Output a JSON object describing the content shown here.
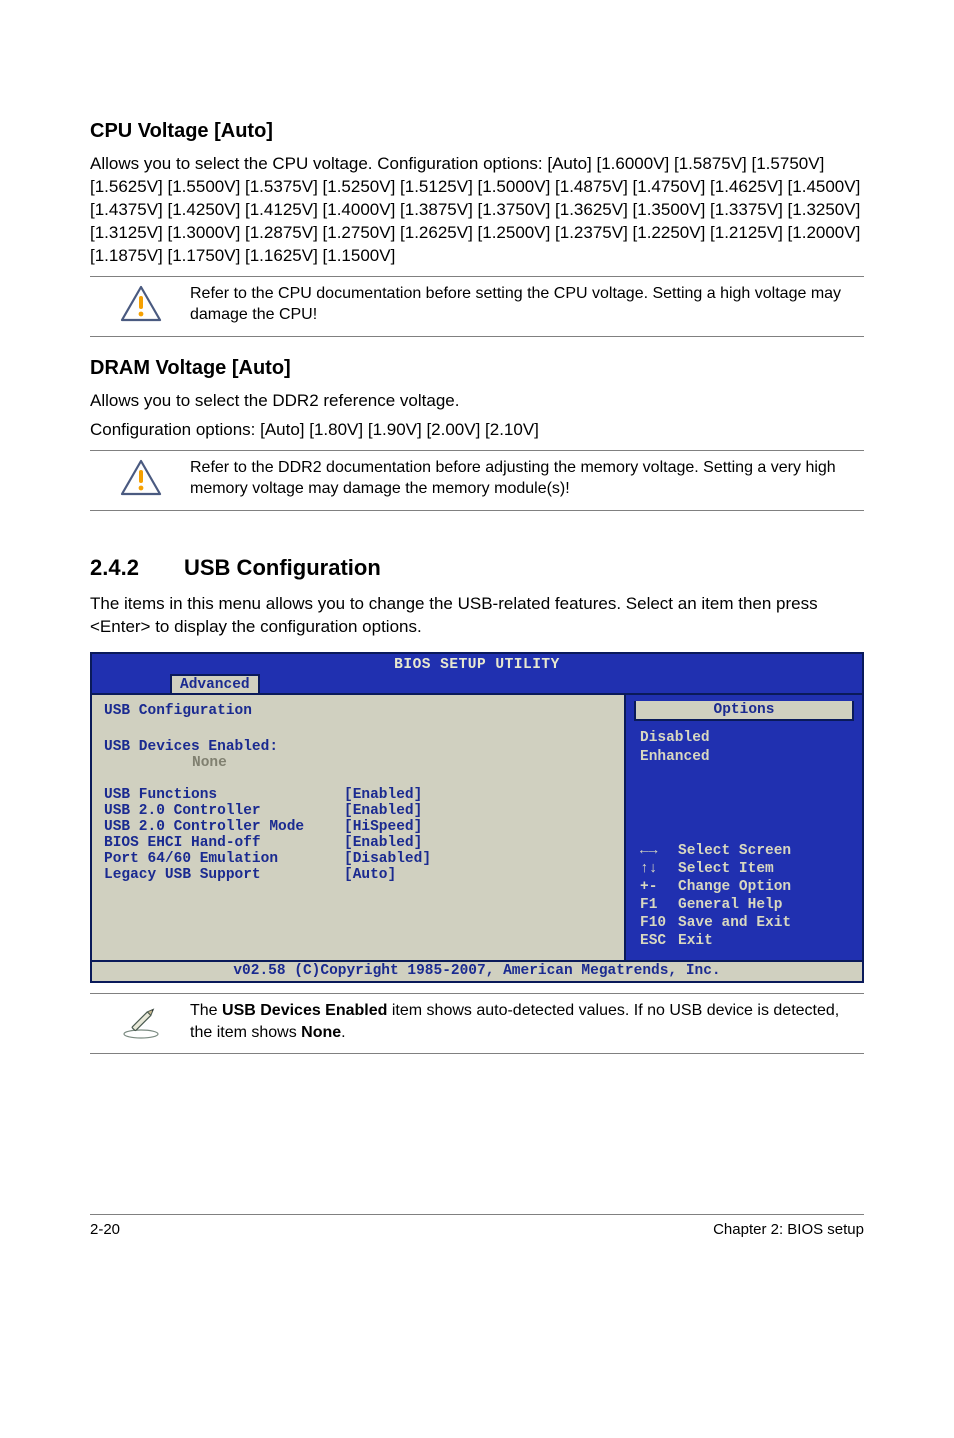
{
  "cpu": {
    "heading": "CPU Voltage [Auto]",
    "text": "Allows you to select the CPU voltage. Configuration options: [Auto] [1.6000V] [1.5875V] [1.5750V] [1.5625V] [1.5500V] [1.5375V] [1.5250V] [1.5125V] [1.5000V] [1.4875V] [1.4750V] [1.4625V] [1.4500V] [1.4375V] [1.4250V] [1.4125V] [1.4000V] [1.3875V] [1.3750V] [1.3625V] [1.3500V] [1.3375V] [1.3250V] [1.3125V] [1.3000V] [1.2875V] [1.2750V] [1.2625V] [1.2500V] [1.2375V] [1.2250V] [1.2125V] [1.2000V] [1.1875V] [1.1750V] [1.1625V] [1.1500V]",
    "note": "Refer to the CPU documentation before setting the CPU voltage. Setting a high voltage may damage the CPU!"
  },
  "dram": {
    "heading": "DRAM Voltage [Auto]",
    "line1": "Allows you to select the DDR2 reference voltage.",
    "line2": "Configuration options: [Auto] [1.80V]  [1.90V] [2.00V] [2.10V]",
    "note": "Refer to the DDR2 documentation before adjusting the memory voltage. Setting a very high memory voltage may damage the memory module(s)!"
  },
  "section": {
    "num": "2.4.2",
    "title": "USB Configuration",
    "intro": "The items in this menu allows you to change the USB-related features. Select an item then press <Enter> to display the configuration options."
  },
  "bios": {
    "banner": "BIOS SETUP UTILITY",
    "tab": "Advanced",
    "panel_title": "USB Configuration",
    "devices_label": "USB Devices Enabled:",
    "devices_value": "None",
    "rows": [
      {
        "label": "USB Functions",
        "value": "[Enabled]"
      },
      {
        "label": "USB 2.0 Controller",
        "value": "[Enabled]"
      },
      {
        "label": "USB 2.0 Controller Mode",
        "value": "[HiSpeed]"
      },
      {
        "label": "BIOS EHCI Hand-off",
        "value": "[Enabled]"
      },
      {
        "label": "Port 64/60 Emulation",
        "value": "[Disabled]"
      },
      {
        "label": "Legacy USB Support",
        "value": "[Auto]"
      }
    ],
    "options_title": "Options",
    "options": [
      "Disabled",
      "Enhanced"
    ],
    "legend": [
      {
        "sym": "←→",
        "text": "Select Screen"
      },
      {
        "sym": "↑↓",
        "text": "Select Item"
      },
      {
        "sym": "+-",
        "text": "Change Option"
      },
      {
        "sym": "F1",
        "text": "General Help"
      },
      {
        "sym": "F10",
        "text": "Save and Exit"
      },
      {
        "sym": "ESC",
        "text": "Exit"
      }
    ],
    "footer": "v02.58 (C)Copyright 1985-2007, American Megatrends, Inc."
  },
  "usbnote": {
    "pre": "The ",
    "b1": "USB Devices Enabled",
    "mid": " item shows auto-detected values. If no USB device is detected, the item shows ",
    "b2": "None",
    "post": "."
  },
  "footer": {
    "left": "2-20",
    "right": "Chapter 2: BIOS setup"
  },
  "colors": {
    "bios_blue": "#2030b0",
    "bios_border": "#0a1a5a",
    "bios_panel": "#d0d0c0",
    "bios_text_dark": "#1a2a90",
    "bios_text_light": "#d8d8c0",
    "warn_stroke": "#4a5a80",
    "warn_fill": "#fefefe",
    "warn_bang": "#f6a000"
  }
}
